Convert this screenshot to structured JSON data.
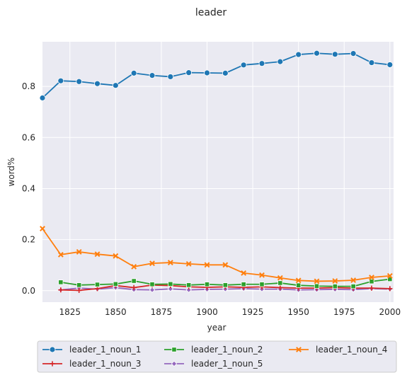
{
  "chart_data": {
    "type": "line",
    "title": "leader",
    "xlabel": "year",
    "ylabel": "word%",
    "xlim": [
      1810,
      2002
    ],
    "ylim": [
      -0.045,
      0.975
    ],
    "x_ticks": [
      1825,
      1850,
      1875,
      1900,
      1925,
      1950,
      1975,
      2000
    ],
    "y_ticks": [
      0.0,
      0.2,
      0.4,
      0.6,
      0.8
    ],
    "y_tick_labels": [
      "0.0",
      "0.2",
      "0.4",
      "0.6",
      "0.8"
    ],
    "grid": true,
    "background": "#eaeaf2",
    "legend_position": "bottom-center",
    "x": [
      1810,
      1820,
      1830,
      1840,
      1850,
      1860,
      1870,
      1880,
      1890,
      1900,
      1910,
      1920,
      1930,
      1940,
      1950,
      1960,
      1970,
      1980,
      1990,
      2000
    ],
    "series": [
      {
        "name": "leader_1_noun_1",
        "color": "#1f77b4",
        "marker": "circle",
        "values": [
          0.755,
          0.822,
          0.819,
          0.811,
          0.804,
          0.852,
          0.843,
          0.838,
          0.854,
          0.853,
          0.852,
          0.884,
          0.89,
          0.897,
          0.925,
          0.93,
          0.926,
          0.929,
          0.893,
          0.885
        ]
      },
      {
        "name": "leader_1_noun_4",
        "color": "#ff7f0e",
        "marker": "x",
        "values": [
          0.243,
          0.141,
          0.152,
          0.143,
          0.136,
          0.094,
          0.107,
          0.11,
          0.105,
          0.101,
          0.101,
          0.069,
          0.061,
          0.05,
          0.04,
          0.037,
          0.038,
          0.041,
          0.052,
          0.058
        ]
      },
      {
        "name": "leader_1_noun_2",
        "color": "#2ca02c",
        "marker": "square",
        "values": [
          null,
          0.033,
          0.022,
          0.024,
          0.026,
          0.038,
          0.025,
          0.026,
          0.022,
          0.025,
          0.022,
          0.025,
          0.025,
          0.03,
          0.021,
          0.018,
          0.017,
          0.017,
          0.036,
          0.045
        ]
      },
      {
        "name": "leader_1_noun_3",
        "color": "#d62728",
        "marker": "plus",
        "values": [
          null,
          0.003,
          0.001,
          0.008,
          0.02,
          0.012,
          0.022,
          0.02,
          0.015,
          0.013,
          0.015,
          0.013,
          0.015,
          0.012,
          0.01,
          0.01,
          0.012,
          0.01,
          0.01,
          0.008
        ]
      },
      {
        "name": "leader_1_noun_5",
        "color": "#9467bd",
        "marker": "diamond",
        "values": [
          null,
          0.003,
          0.01,
          0.006,
          0.012,
          0.004,
          0.003,
          0.007,
          0.003,
          0.005,
          0.006,
          0.008,
          0.006,
          0.006,
          0.003,
          0.004,
          0.005,
          0.004,
          0.008,
          0.006
        ]
      }
    ],
    "legend_order": [
      0,
      3,
      2,
      4,
      1
    ]
  }
}
